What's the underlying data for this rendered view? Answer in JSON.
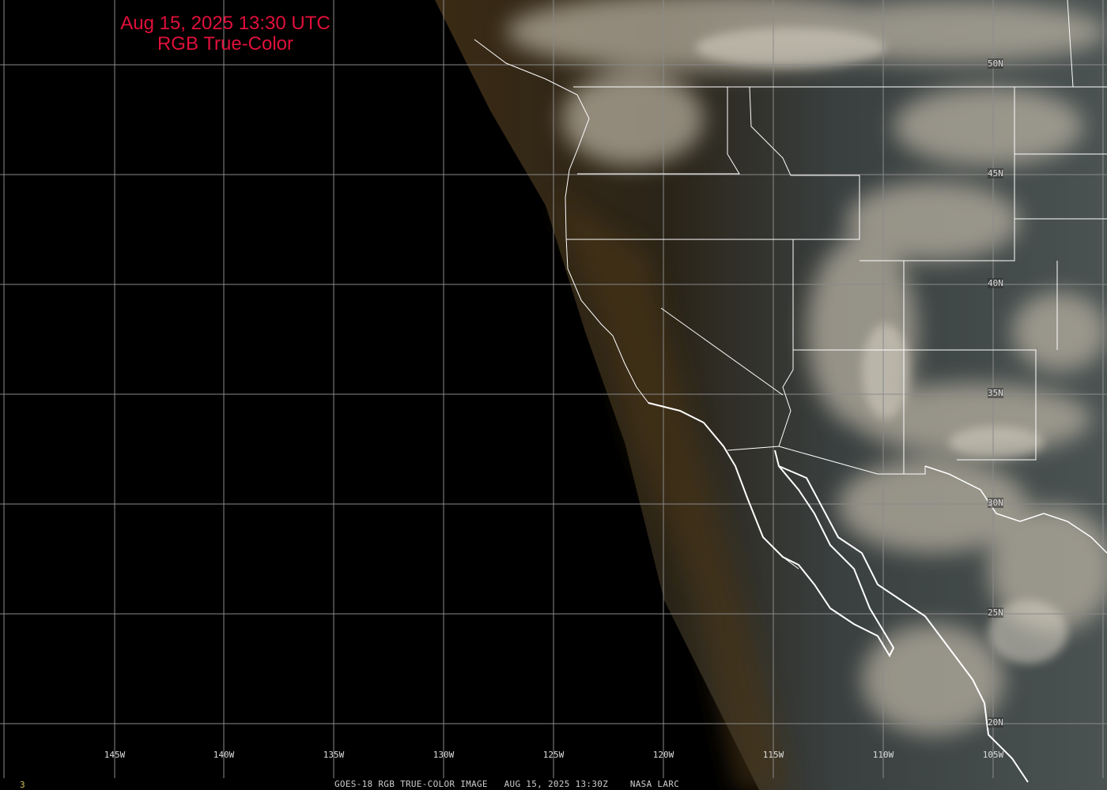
{
  "header": {
    "title_line1": "Aug 15, 2025 13:30 UTC",
    "title_line2": "RGB True-Color",
    "title_color": "#e0103a"
  },
  "footer": {
    "caption": "GOES-18 RGB TRUE-COLOR IMAGE   AUG 15, 2025 13:30Z    NASA LARC",
    "frame_number": "3"
  },
  "longitude_labels": [
    "145W",
    "140W",
    "135W",
    "130W",
    "125W",
    "120W",
    "115W",
    "110W",
    "105W"
  ],
  "latitude_labels": [
    "50N",
    "45N",
    "40N",
    "35N",
    "30N",
    "25N",
    "20N"
  ],
  "colors": {
    "background": "#000000",
    "gridline": "#8a8a8a",
    "borders": "#ffffff"
  }
}
